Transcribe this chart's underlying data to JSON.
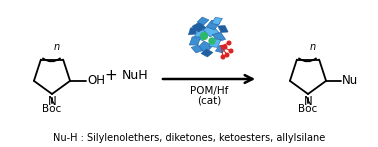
{
  "bg_color": "#ffffff",
  "text_color": "#000000",
  "pom_blue_light": "#5ab4f0",
  "pom_blue_mid": "#3d8fd4",
  "pom_blue_dark": "#2060a0",
  "pom_green": "#2db86e",
  "pom_red": "#dd2222",
  "caption": "Nu-H : Silylenolethers, diketones, ketoesters, allylsilane",
  "label_pom": "POM/Hf",
  "label_cat": "(cat)",
  "label_nuh": "NuH",
  "figwidth": 3.78,
  "figheight": 1.47,
  "dpi": 100
}
